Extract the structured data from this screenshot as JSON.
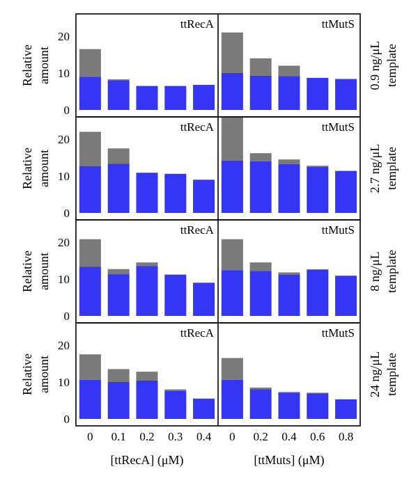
{
  "chart_data": {
    "type": "bar",
    "stacked": true,
    "ylabel": "Relative amount",
    "ylim": [
      0,
      25
    ],
    "yticks": [
      0,
      10,
      20
    ],
    "colors": {
      "blue": "#3535f5",
      "gray": "#7a7a7a"
    },
    "left_x_label": "[ttRecA] (μM)",
    "right_x_label": "[ttMuts] (μM)",
    "left_categories": [
      "0",
      "0.1",
      "0.2",
      "0.3",
      "0.4"
    ],
    "right_categories": [
      "0",
      "0.2",
      "0.4",
      "0.6",
      "0.8"
    ],
    "rows": [
      {
        "label_line1": "0.9 ng/μL",
        "label_line2": "template",
        "panels": [
          {
            "title": "ttRecA",
            "blue": [
              9,
              8,
              6.5,
              6.5,
              6.8
            ],
            "total": [
              16.5,
              8.3,
              6.5,
              6.5,
              6.8
            ]
          },
          {
            "title": "ttMutS",
            "blue": [
              10,
              9.3,
              9.2,
              8.7,
              8.4
            ],
            "total": [
              21,
              14,
              12,
              8.7,
              8.4
            ]
          }
        ]
      },
      {
        "label_line1": "2.7 ng/μL",
        "label_line2": "template",
        "panels": [
          {
            "title": "ttRecA",
            "blue": [
              12.7,
              13.3,
              10.9,
              10.6,
              9
            ],
            "total": [
              22,
              17.5,
              10.9,
              10.6,
              9
            ]
          },
          {
            "title": "ttMutS",
            "blue": [
              14.2,
              14,
              13.2,
              12.5,
              11.4
            ],
            "total": [
              26,
              16.2,
              14.5,
              12.8,
              11.4
            ]
          }
        ]
      },
      {
        "label_line1": "8 ng/μL",
        "label_line2": "template",
        "panels": [
          {
            "title": "ttRecA",
            "blue": [
              13.3,
              11.3,
              13.5,
              11.2,
              9
            ],
            "total": [
              20.8,
              12.7,
              14.5,
              11.2,
              9
            ]
          },
          {
            "title": "ttMutS",
            "blue": [
              12.4,
              12.2,
              11.2,
              12.6,
              10.9
            ],
            "total": [
              20.8,
              14.5,
              11.8,
              12.6,
              10.9
            ]
          }
        ]
      },
      {
        "label_line1": "24 ng/μL",
        "label_line2": "template",
        "panels": [
          {
            "title": "ttRecA",
            "blue": [
              10.6,
              10,
              10.4,
              7.6,
              5.5
            ],
            "total": [
              17.5,
              13.5,
              12.8,
              8,
              5.5
            ]
          },
          {
            "title": "ttMutS",
            "blue": [
              10.6,
              8,
              7.1,
              6.9,
              5.3
            ],
            "total": [
              16.5,
              8.5,
              7.3,
              7.1,
              5.3
            ]
          }
        ]
      }
    ]
  }
}
